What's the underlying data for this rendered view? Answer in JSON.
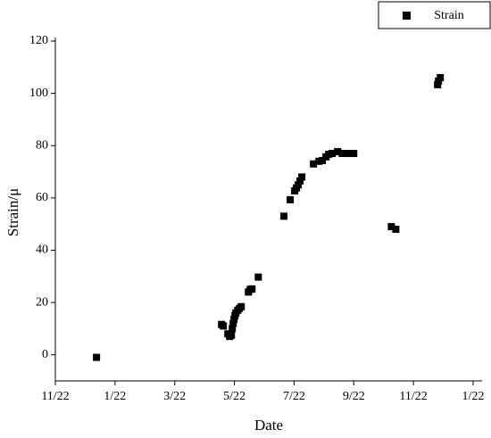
{
  "chart_data": {
    "type": "scatter",
    "x_label": "Date",
    "y_label": "Strain/μ",
    "series": [
      {
        "name": "Strain",
        "color": "#000000",
        "x": [
          1.38,
          5.57,
          5.63,
          5.78,
          5.84,
          5.9,
          5.93,
          5.96,
          5.99,
          6.02,
          6.05,
          6.11,
          6.17,
          6.23,
          6.47,
          6.53,
          6.59,
          6.8,
          7.66,
          7.87,
          8.02,
          8.08,
          8.14,
          8.2,
          8.26,
          8.65,
          8.83,
          8.95,
          9.07,
          9.16,
          9.28,
          9.46,
          9.61,
          9.82,
          10,
          11.26,
          11.41,
          12.81,
          12.84,
          12.9
        ],
        "values": [
          -1,
          11.6,
          11,
          8,
          7,
          7.5,
          10,
          12,
          13.6,
          15,
          16,
          17,
          17.7,
          18.4,
          24,
          25,
          25.2,
          29.7,
          53,
          59.3,
          62.7,
          63.8,
          65,
          66.5,
          68,
          73,
          74,
          74.3,
          75.7,
          76.7,
          77,
          77.7,
          77,
          77,
          77,
          49,
          48,
          103.3,
          104.7,
          106
        ]
      }
    ],
    "xlim": [
      0,
      14.3
    ],
    "xticks": [
      {
        "value": 0,
        "label": "11/22"
      },
      {
        "value": 2,
        "label": "1/22"
      },
      {
        "value": 4,
        "label": "3/22"
      },
      {
        "value": 6,
        "label": "5/22"
      },
      {
        "value": 8,
        "label": "7/22"
      },
      {
        "value": 10,
        "label": "9/22"
      },
      {
        "value": 12,
        "label": "11/22"
      },
      {
        "value": 14,
        "label": "1/22"
      }
    ],
    "ylim": [
      -10,
      120
    ],
    "yticks": [
      0,
      20,
      40,
      60,
      80,
      100,
      120
    ],
    "legend": "top-right",
    "grid": false
  }
}
